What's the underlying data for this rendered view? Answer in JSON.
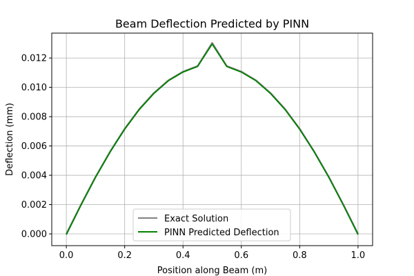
{
  "chart_data": {
    "type": "line",
    "title": "Beam Deflection Predicted by PINN",
    "xlabel": "Position along Beam (m)",
    "ylabel": "Deflection (mm)",
    "xlim": [
      -0.05,
      1.05
    ],
    "ylim": [
      -0.0008,
      0.0137
    ],
    "x_ticks": [
      0.0,
      0.2,
      0.4,
      0.6,
      0.8,
      1.0
    ],
    "x_tick_labels": [
      "0.0",
      "0.2",
      "0.4",
      "0.6",
      "0.8",
      "1.0"
    ],
    "y_ticks": [
      0.0,
      0.002,
      0.004,
      0.006,
      0.008,
      0.01,
      0.012
    ],
    "y_tick_labels": [
      "0.000",
      "0.002",
      "0.004",
      "0.006",
      "0.008",
      "0.010",
      "0.012"
    ],
    "grid": true,
    "legend_position": "lower center",
    "series": [
      {
        "name": "Exact Solution",
        "color": "#808080",
        "x": [
          0.0,
          0.05,
          0.1,
          0.15,
          0.2,
          0.25,
          0.3,
          0.35,
          0.4,
          0.45,
          0.5,
          0.55,
          0.6,
          0.65,
          0.7,
          0.75,
          0.8,
          0.85,
          0.9,
          0.95,
          1.0
        ],
        "y": [
          0.0,
          0.00198,
          0.00388,
          0.00561,
          0.00717,
          0.00851,
          0.00961,
          0.01048,
          0.01107,
          0.01145,
          0.01303,
          0.01145,
          0.01107,
          0.01048,
          0.00961,
          0.00851,
          0.00717,
          0.00561,
          0.00388,
          0.00198,
          0.0
        ]
      },
      {
        "name": "PINN Predicted Deflection",
        "color": "#008000",
        "x": [
          0.0,
          0.05,
          0.1,
          0.15,
          0.2,
          0.25,
          0.3,
          0.35,
          0.4,
          0.45,
          0.5,
          0.55,
          0.6,
          0.65,
          0.7,
          0.75,
          0.8,
          0.85,
          0.9,
          0.95,
          1.0
        ],
        "y": [
          -5e-05,
          0.00196,
          0.00386,
          0.00559,
          0.00714,
          0.00848,
          0.00958,
          0.01045,
          0.01104,
          0.01142,
          0.01295,
          0.01142,
          0.01104,
          0.01045,
          0.00958,
          0.00848,
          0.00714,
          0.00559,
          0.00386,
          0.00196,
          -5e-05
        ]
      }
    ]
  }
}
